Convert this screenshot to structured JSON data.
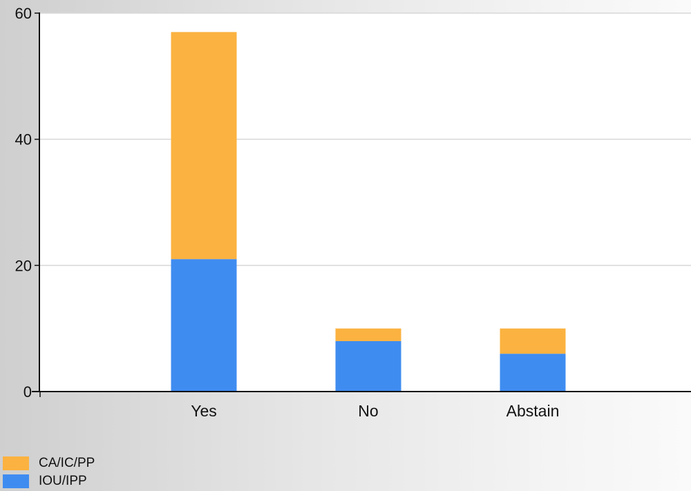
{
  "chart_data": {
    "type": "bar",
    "stacked": true,
    "categories": [
      "Yes",
      "No",
      "Abstain"
    ],
    "series": [
      {
        "name": "IOU/IPP",
        "values": [
          21,
          8,
          6
        ],
        "color": "#3f8cf0"
      },
      {
        "name": "CA/IC/PP",
        "values": [
          36,
          2,
          4
        ],
        "color": "#fbb240"
      }
    ],
    "y_ticks": [
      "0",
      "20",
      "40",
      "60"
    ],
    "ylim": [
      0,
      60
    ],
    "grid": true,
    "legend_position": "bottom-left",
    "title": "",
    "xlabel": "",
    "ylabel": ""
  },
  "legend": {
    "items": [
      {
        "label": "CA/IC/PP",
        "color": "#fbb240"
      },
      {
        "label": "IOU/IPP",
        "color": "#3f8cf0"
      }
    ]
  }
}
